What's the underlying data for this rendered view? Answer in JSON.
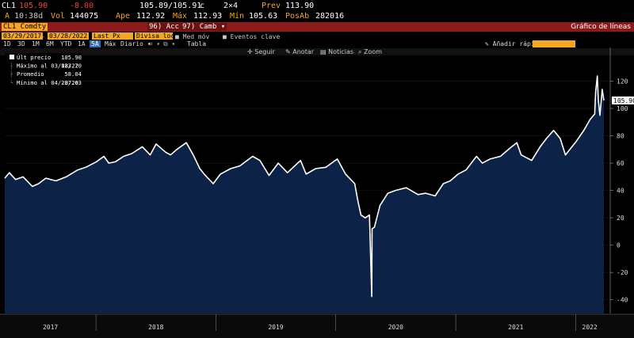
{
  "header": {
    "ticker": "CL1",
    "last": "105.90",
    "change": "-8.00",
    "bid_ask": "105.89/105.91",
    "bid_ask_suffix": "c",
    "size": "2×4",
    "prev_label": "Prev",
    "prev": "113.90",
    "time_prefix": "A",
    "time": "10:38d",
    "vol_label": "Vol",
    "vol": "144075",
    "open_label": "Ape",
    "open": "112.92",
    "high_label": "Máx",
    "high": "112.93",
    "low_label": "Mín",
    "low": "105.63",
    "oi_label": "PosAb",
    "oi": "282016"
  },
  "security_bar": {
    "security": "CL1 Comdty",
    "acc_num": "96",
    "acc_label": "Acc",
    "camb_num": "97",
    "camb_label": "Camb",
    "title": "Gráfico de líneas"
  },
  "settings": {
    "start_date": "03/29/2017",
    "end_date": "03/28/2022",
    "field": "Last Px",
    "currency": "Divisa local",
    "avg": "Med móv",
    "events": "Eventos clave"
  },
  "periods": [
    "1D",
    "3D",
    "1M",
    "6M",
    "YTD",
    "1A",
    "5A",
    "Máx"
  ],
  "selected_period": "5A",
  "frequency": "Diario",
  "table_label": "Tabla",
  "quick_add": "Añadir rápido",
  "tools": {
    "follow": "Seguir",
    "annotate": "Anotar",
    "news": "Noticias",
    "zoom": "Zoom"
  },
  "colors": {
    "background": "#000000",
    "area_fill": "#0c2247",
    "line": "#ffffff",
    "accent": "#f5a623",
    "header_bar": "#8b1a1a",
    "negative": "#e8473a"
  },
  "chart_data": {
    "type": "area",
    "title": "",
    "xlabel": "",
    "ylabel": "",
    "ylim": [
      -50,
      140
    ],
    "yticks": [
      -40,
      -20,
      0,
      20,
      40,
      60,
      80,
      100,
      120
    ],
    "xlim": [
      "2017-03-29",
      "2022-03-28"
    ],
    "x_tick_labels": [
      "2017",
      "2018",
      "2019",
      "2020",
      "2021",
      "2022"
    ],
    "last_value_label": "105.90",
    "legend": [
      {
        "label": "Últ precio",
        "value": "105.90"
      },
      {
        "label": "Máximo al 03/08/22",
        "value": "123.70"
      },
      {
        "label": "Promedio",
        "value": "58.04"
      },
      {
        "label": "Mínimo al 04/20/20",
        "value": "-37.63"
      }
    ],
    "series": [
      {
        "x": [
          "2017-03-29",
          "2017-04-12",
          "2017-05-01",
          "2017-05-24",
          "2017-06-21",
          "2017-07-10",
          "2017-08-01",
          "2017-09-01",
          "2017-10-02",
          "2017-11-06",
          "2017-12-01",
          "2018-01-02",
          "2018-01-25",
          "2018-02-09",
          "2018-03-01",
          "2018-03-26",
          "2018-04-20",
          "2018-05-22",
          "2018-06-15",
          "2018-07-03",
          "2018-08-01",
          "2018-08-16",
          "2018-09-04",
          "2018-10-03",
          "2018-10-24",
          "2018-11-13",
          "2018-11-30",
          "2018-12-24",
          "2019-01-15",
          "2019-02-15",
          "2019-03-15",
          "2019-04-23",
          "2019-05-15",
          "2019-06-12",
          "2019-07-10",
          "2019-08-07",
          "2019-09-16",
          "2019-10-03",
          "2019-11-01",
          "2019-12-02",
          "2020-01-06",
          "2020-01-31",
          "2020-02-28",
          "2020-03-09",
          "2020-03-18",
          "2020-03-31",
          "2020-04-13",
          "2020-04-20",
          "2020-04-21",
          "2020-04-28",
          "2020-05-15",
          "2020-06-08",
          "2020-07-01",
          "2020-08-03",
          "2020-09-08",
          "2020-10-01",
          "2020-10-30",
          "2020-11-24",
          "2020-12-15",
          "2021-01-08",
          "2021-02-01",
          "2021-03-05",
          "2021-03-23",
          "2021-04-15",
          "2021-05-17",
          "2021-06-15",
          "2021-07-06",
          "2021-07-19",
          "2021-08-20",
          "2021-09-15",
          "2021-10-04",
          "2021-10-26",
          "2021-11-15",
          "2021-12-01",
          "2022-01-03",
          "2022-01-26",
          "2022-02-14",
          "2022-02-28",
          "2022-03-03",
          "2022-03-08",
          "2022-03-11",
          "2022-03-16",
          "2022-03-23",
          "2022-03-28"
        ],
        "y": [
          49,
          53,
          48,
          50,
          43,
          45,
          49,
          47,
          50,
          55,
          57,
          61,
          65,
          60,
          61,
          65,
          67,
          72,
          66,
          74,
          68,
          66,
          70,
          75,
          66,
          56,
          51,
          45,
          52,
          56,
          58,
          65,
          62,
          51,
          60,
          53,
          62,
          52,
          56,
          57,
          63,
          52,
          45,
          32,
          22,
          20,
          22,
          -37.63,
          12,
          13,
          29,
          38,
          40,
          42,
          37,
          38,
          36,
          45,
          47,
          52,
          55,
          65,
          60,
          63,
          65,
          71,
          75,
          66,
          62,
          72,
          78,
          84,
          78,
          66,
          76,
          84,
          92,
          96,
          112,
          123.7,
          106,
          95,
          114,
          105.9
        ]
      }
    ]
  }
}
